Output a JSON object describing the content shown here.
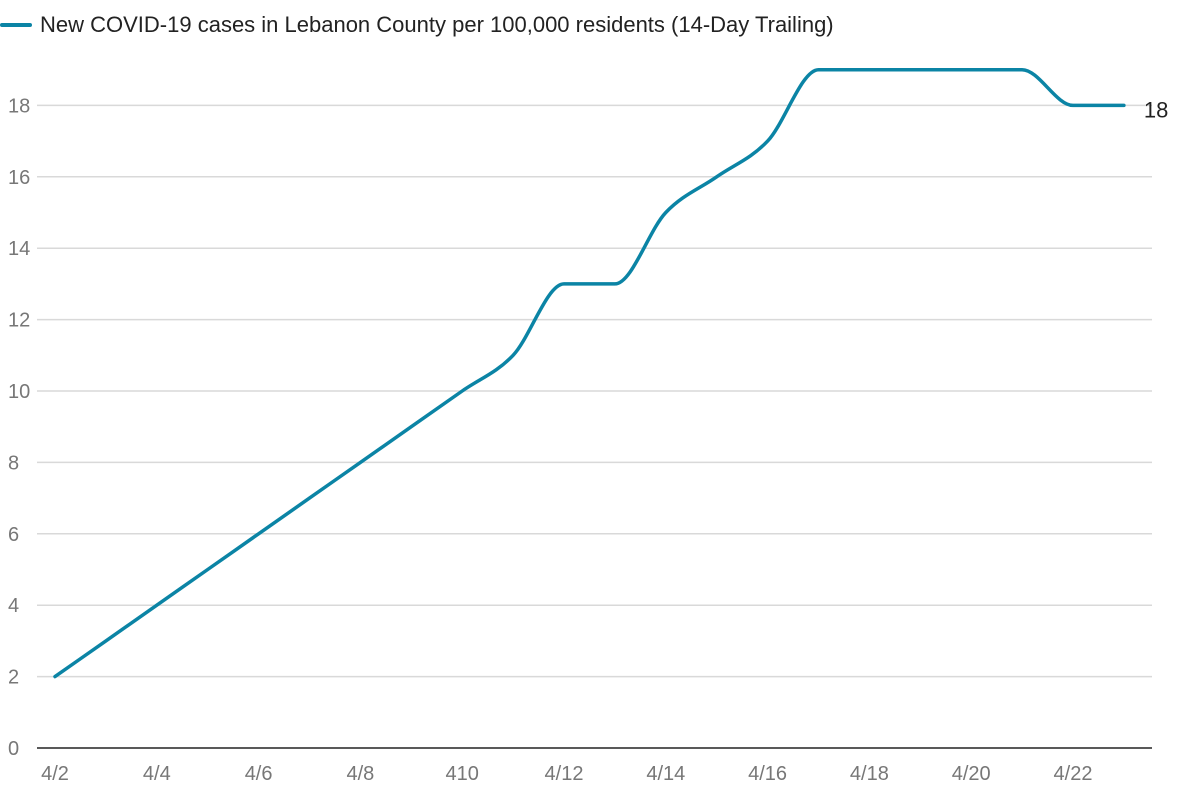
{
  "colors": {
    "series": "#0b84a5",
    "grid": "#d9d9d9",
    "axis": "#222222",
    "tick_text": "#777777"
  },
  "chart_data": {
    "type": "line",
    "legend": {
      "position": "top-left"
    },
    "grid": true,
    "x": [
      "4/2",
      "4/3",
      "4/4",
      "4/5",
      "4/6",
      "4/7",
      "4/8",
      "4/9",
      "4/10",
      "4/11",
      "4/12",
      "4/13",
      "4/14",
      "4/15",
      "4/16",
      "4/17",
      "4/18",
      "4/19",
      "4/20",
      "4/21",
      "4/22",
      "4/23"
    ],
    "x_tick_labels": [
      "4/2",
      "4/4",
      "4/6",
      "4/8",
      "410",
      "4/12",
      "4/14",
      "4/16",
      "4/18",
      "4/20",
      "4/22"
    ],
    "y_ticks": [
      0,
      2,
      4,
      6,
      8,
      10,
      12,
      14,
      16,
      18
    ],
    "ylim": [
      0,
      19.6
    ],
    "series": [
      {
        "name": "New COVID-19 cases in Lebanon County per 100,000 residents (14-Day Trailing)",
        "values": [
          2,
          3,
          4,
          5,
          6,
          7,
          8,
          9,
          10,
          11,
          13,
          13,
          15,
          16,
          17,
          19,
          19,
          19,
          19,
          19,
          18,
          18
        ]
      }
    ],
    "end_label": "18"
  }
}
